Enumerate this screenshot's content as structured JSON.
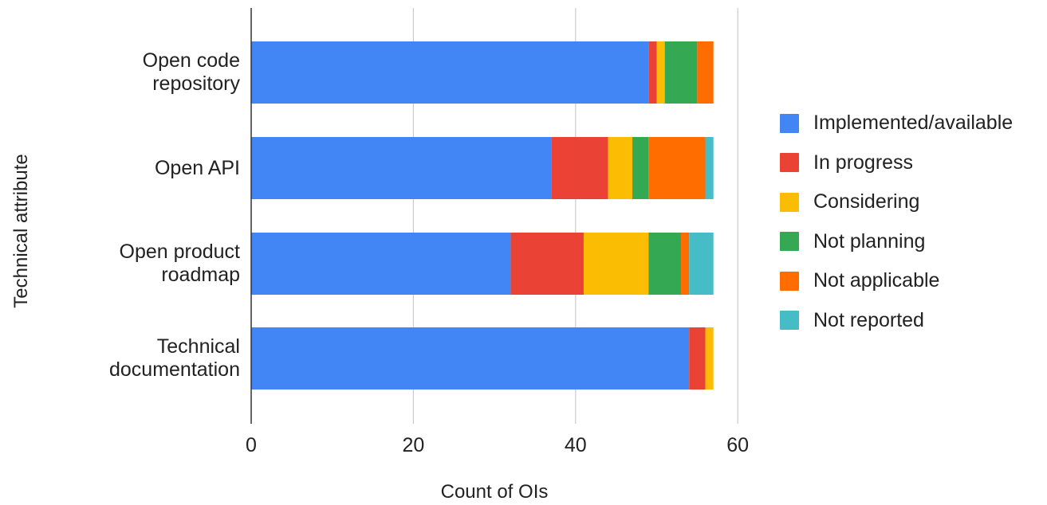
{
  "chart_data": {
    "type": "bar",
    "orientation": "horizontal",
    "stacked": true,
    "title": "",
    "xlabel": "Count of OIs",
    "ylabel": "Technical attribute",
    "xlim": [
      0,
      60
    ],
    "xticks": [
      0,
      20,
      40,
      60
    ],
    "grid": true,
    "legend_position": "right",
    "categories": [
      [
        "Open code",
        "repository"
      ],
      [
        "Open API"
      ],
      [
        "Open product",
        "roadmap"
      ],
      [
        "Technical",
        "documentation"
      ]
    ],
    "series": [
      {
        "name": "Implemented/available",
        "color": "#4285F4",
        "values": [
          49,
          37,
          32,
          54
        ]
      },
      {
        "name": "In progress",
        "color": "#EA4335",
        "values": [
          1,
          7,
          9,
          2
        ]
      },
      {
        "name": "Considering",
        "color": "#FBBC04",
        "values": [
          1,
          3,
          8,
          1
        ]
      },
      {
        "name": "Not planning",
        "color": "#34A853",
        "values": [
          4,
          2,
          4,
          0
        ]
      },
      {
        "name": "Not applicable",
        "color": "#FF6D01",
        "values": [
          2,
          7,
          1,
          0
        ]
      },
      {
        "name": "Not reported",
        "color": "#46BDC6",
        "values": [
          0,
          1,
          3,
          0
        ]
      }
    ]
  }
}
